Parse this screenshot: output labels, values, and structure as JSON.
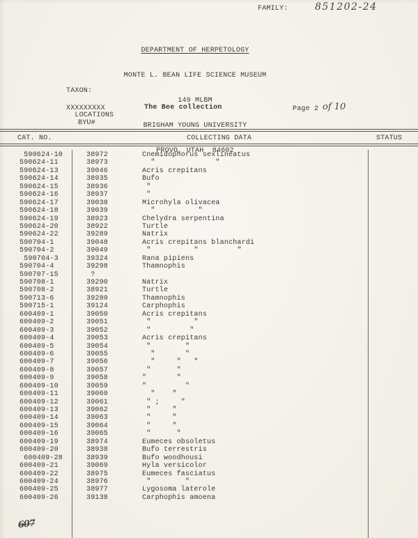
{
  "page": {
    "family_label": "FAMILY:",
    "family_value": "851202-24",
    "letterhead": {
      "line1": "DEPARTMENT OF HERPETOLOGY",
      "line2": "MONTE L. BEAN LIFE SCIENCE MUSEUM",
      "line3": "149 MLBM",
      "line4": "BRIGHAM YOUNG UNIVERSITY",
      "line5": "PROVO, UTAH  84602"
    },
    "taxon_label": "TAXON:",
    "struck_word": "LOCATIONS",
    "struck_overlay": "XXXXXXXXX",
    "collection_title": "The Bee collection",
    "page_label": "Page 2",
    "page_handwritten": "of 10",
    "byu_label": "BYU#",
    "footer_mark": "607"
  },
  "table": {
    "headers": [
      "CAT. NO.",
      "COLLECTING DATA",
      "STATUS"
    ],
    "rows": [
      {
        "cat": " 590624-10",
        "byu": "38972",
        "data": "Cnemidophorus sexlineatus"
      },
      {
        "cat": "590624-11",
        "byu": "38973",
        "data": "  \"              \""
      },
      {
        "cat": "590624-13",
        "byu": "39046",
        "data": "Acris crepitans"
      },
      {
        "cat": "590624-14",
        "byu": "38935",
        "data": "Bufo"
      },
      {
        "cat": "590624-15",
        "byu": "38936",
        "data": " \""
      },
      {
        "cat": "590624-16",
        "byu": "38937",
        "data": " \""
      },
      {
        "cat": "590624-17",
        "byu": "39038",
        "data": "Microhyla olivacea"
      },
      {
        "cat": "590624-18",
        "byu": "39039",
        "data": "  \"          \""
      },
      {
        "cat": "590624-19",
        "byu": "38923",
        "data": "Chelydra serpentina"
      },
      {
        "cat": "590624-20",
        "byu": "38922",
        "data": "Turtle"
      },
      {
        "cat": "590624-22",
        "byu": "39289",
        "data": "Natrix"
      },
      {
        "cat": "590704-1",
        "byu": "39048",
        "data": "Acris crepitans blanchardi"
      },
      {
        "cat": "590704-2",
        "byu": "39049",
        "data": " \"          \"         \""
      },
      {
        "cat": " 590704-3",
        "byu": "39324",
        "data": "Rana pipiens"
      },
      {
        "cat": "590704-4",
        "byu": "39298",
        "data": "Thamnophis"
      },
      {
        "cat": "590707-15",
        "byu": " ?",
        "data": ""
      },
      {
        "cat": "590708-1",
        "byu": "39290",
        "data": "Natrix"
      },
      {
        "cat": "590708-2",
        "byu": "38921",
        "data": "Turtle"
      },
      {
        "cat": "590713-6",
        "byu": "39280",
        "data": "Thamnophis"
      },
      {
        "cat": "590715-1",
        "byu": "39124",
        "data": "Carphophis"
      },
      {
        "cat": "600409-1",
        "byu": "39050",
        "data": "Acris crepitans"
      },
      {
        "cat": "600409-2",
        "byu": "39051",
        "data": " \"          \""
      },
      {
        "cat": "600409-3",
        "byu": "39052",
        "data": " \"         \""
      },
      {
        "cat": "600409-4",
        "byu": "39053",
        "data": "Acris crepitans"
      },
      {
        "cat": "600409-5",
        "byu": "39054",
        "data": " \"        \""
      },
      {
        "cat": "600409-6",
        "byu": "39055",
        "data": "  \"       \""
      },
      {
        "cat": "600409-7",
        "byu": "39056",
        "data": "  \"     \"   \""
      },
      {
        "cat": "600409-8",
        "byu": "39057",
        "data": " \"      \""
      },
      {
        "cat": "600409-9",
        "byu": "39058",
        "data": "\"       \""
      },
      {
        "cat": "600409-10",
        "byu": "39059",
        "data": "\"         \""
      },
      {
        "cat": "600409-11",
        "byu": "39060",
        "data": "  \"    \""
      },
      {
        "cat": "600409-12",
        "byu": "39061",
        "data": " \" ;     \""
      },
      {
        "cat": "600409-13",
        "byu": "39062",
        "data": " \"     \""
      },
      {
        "cat": "600409-14",
        "byu": "39063",
        "data": " \"     \""
      },
      {
        "cat": "600409-15",
        "byu": "39064",
        "data": " \"     \""
      },
      {
        "cat": "600409-16",
        "byu": "39065",
        "data": " \"      \""
      },
      {
        "cat": "600409-19",
        "byu": "38974",
        "data": "Eumeces obsoletus"
      },
      {
        "cat": "600409-20",
        "byu": "38938",
        "data": "Bufo terrestris"
      },
      {
        "cat": " 600409-28",
        "byu": "38939",
        "data": "Bufo woodhousi"
      },
      {
        "cat": "600409-21",
        "byu": "39069",
        "data": "Hyla versicolor"
      },
      {
        "cat": "600409-22",
        "byu": "38975",
        "data": "Eumeces fasciatus"
      },
      {
        "cat": "600409-24",
        "byu": "38976",
        "data": " \"        \""
      },
      {
        "cat": "600409-25",
        "byu": "38977",
        "data": "Lygosoma laterole"
      },
      {
        "cat": "600409-26",
        "byu": "39138",
        "data": "Carphophis amoena"
      }
    ]
  },
  "colors": {
    "paper": "#f5f2eb",
    "ink": "#3c372e",
    "rule": "#55524b",
    "handwriting": "#474038"
  }
}
